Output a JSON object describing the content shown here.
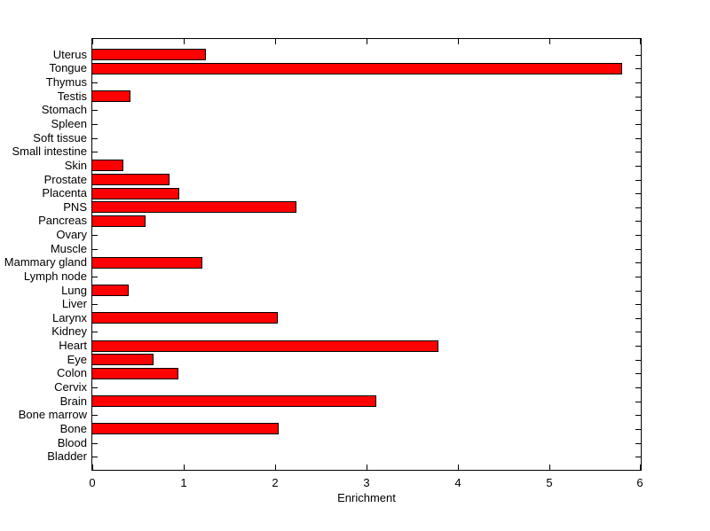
{
  "chart_data": {
    "type": "bar",
    "orientation": "horizontal",
    "title": "",
    "xlabel": "Enrichment",
    "ylabel": "",
    "xlim": [
      0,
      6
    ],
    "xticks": [
      0,
      1,
      2,
      3,
      4,
      5,
      6
    ],
    "grid": false,
    "legend": null,
    "background_color": "#ffffff",
    "axis_color": "#000000",
    "text_color": "#000000",
    "bar_color": "#ff0000",
    "bar_border_color": "#000000",
    "category_order": "top-to-bottom",
    "categories": [
      "Uterus",
      "Tongue",
      "Thymus",
      "Testis",
      "Stomach",
      "Spleen",
      "Soft tissue",
      "Small intestine",
      "Skin",
      "Prostate",
      "Placenta",
      "PNS",
      "Pancreas",
      "Ovary",
      "Muscle",
      "Mammary gland",
      "Lymph node",
      "Lung",
      "Liver",
      "Larynx",
      "Kidney",
      "Heart",
      "Eye",
      "Colon",
      "Cervix",
      "Brain",
      "Bone marrow",
      "Bone",
      "Blood",
      "Bladder"
    ],
    "values": [
      1.24,
      5.8,
      0,
      0.42,
      0,
      0,
      0,
      0,
      0.34,
      0.84,
      0.95,
      2.23,
      0.58,
      0,
      0,
      1.2,
      0,
      0.4,
      0,
      2.03,
      0,
      3.79,
      0.67,
      0.94,
      0,
      3.11,
      0,
      2.04,
      0,
      0
    ]
  }
}
